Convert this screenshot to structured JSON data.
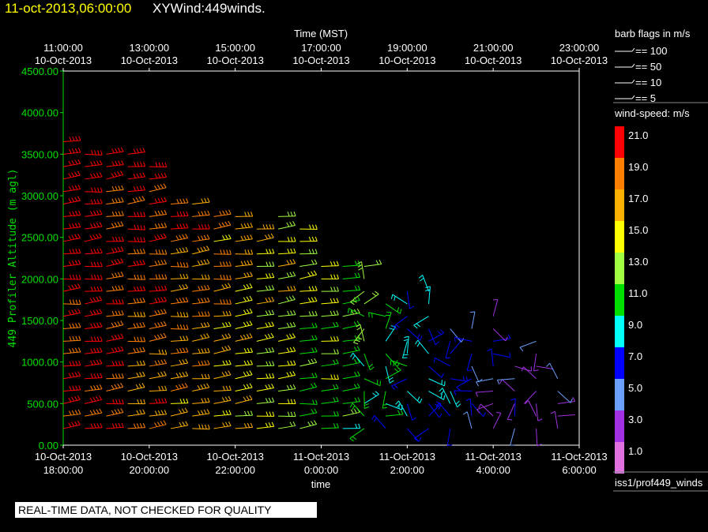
{
  "header": {
    "time_label": "11-oct-2013,06:00:00",
    "name_label": "XYWind:449winds."
  },
  "footer": {
    "quality_note": "REAL-TIME DATA, NOT CHECKED FOR QUALITY"
  },
  "legend": {
    "barb_title": "barb flags in m/s",
    "barbs": [
      "== 100",
      "== 50",
      "== 10",
      "== 5"
    ],
    "speed_title": "wind-speed: m/s",
    "speed_levels": [
      {
        "label": "21.0",
        "color": "#ff0000"
      },
      {
        "label": "19.0",
        "color": "#ff8000"
      },
      {
        "label": "17.0",
        "color": "#ffb000"
      },
      {
        "label": "15.0",
        "color": "#ffff00"
      },
      {
        "label": "13.0",
        "color": "#a0ff40"
      },
      {
        "label": "11.0",
        "color": "#00e000"
      },
      {
        "label": "9.0",
        "color": "#00ffff"
      },
      {
        "label": "7.0",
        "color": "#0000ff"
      },
      {
        "label": "5.0",
        "color": "#6aa0ff"
      },
      {
        "label": "3.0",
        "color": "#a030e0"
      },
      {
        "label": "1.0",
        "color": "#e070e0"
      }
    ],
    "source_label": "iss1/prof449_winds"
  },
  "chart_data": {
    "type": "scatter",
    "title": "11-oct-2013,06:00:00  XYWind:449winds.",
    "xlabel": "time",
    "top_xlabel": "Time (MST)",
    "ylabel": "449 Profiler Altitude (m agl)",
    "ylim": [
      0,
      4500
    ],
    "y_ticks": [
      "4500.00",
      "4000.00",
      "3500.00",
      "3000.00",
      "2500.00",
      "2000.00",
      "1500.00",
      "1000.00",
      "500.00",
      "0.00"
    ],
    "x_ticks_bottom": [
      [
        "10-Oct-2013",
        "18:00:00"
      ],
      [
        "10-Oct-2013",
        "20:00:00"
      ],
      [
        "10-Oct-2013",
        "22:00:00"
      ],
      [
        "11-Oct-2013",
        "0:00:00"
      ],
      [
        "11-Oct-2013",
        "2:00:00"
      ],
      [
        "11-Oct-2013",
        "4:00:00"
      ],
      [
        "11-Oct-2013",
        "6:00:00"
      ]
    ],
    "x_ticks_top": [
      [
        "11:00:00",
        "10-Oct-2013"
      ],
      [
        "13:00:00",
        "10-Oct-2013"
      ],
      [
        "15:00:00",
        "10-Oct-2013"
      ],
      [
        "17:00:00",
        "10-Oct-2013"
      ],
      [
        "19:00:00",
        "10-Oct-2013"
      ],
      [
        "21:00:00",
        "10-Oct-2013"
      ],
      [
        "23:00:00",
        "10-Oct-2013"
      ]
    ],
    "xlim_hours": [
      0,
      12
    ],
    "grid": false,
    "series": [
      {
        "x_hours": [
          0,
          0.5,
          1,
          1.5,
          2,
          2.5,
          3,
          3.5,
          4,
          4.5,
          5,
          5.5,
          6,
          6.5,
          7,
          7.5,
          8,
          8.5,
          9,
          9.5,
          10,
          10.5,
          11,
          11.5
        ],
        "y_range": [
          200,
          3800
        ],
        "speed_trend": [
          20,
          20,
          19,
          18,
          18,
          17,
          17,
          16,
          15,
          14,
          13,
          12,
          12,
          11,
          10,
          9,
          8,
          7,
          6,
          5,
          4,
          4,
          3,
          3
        ]
      }
    ]
  }
}
